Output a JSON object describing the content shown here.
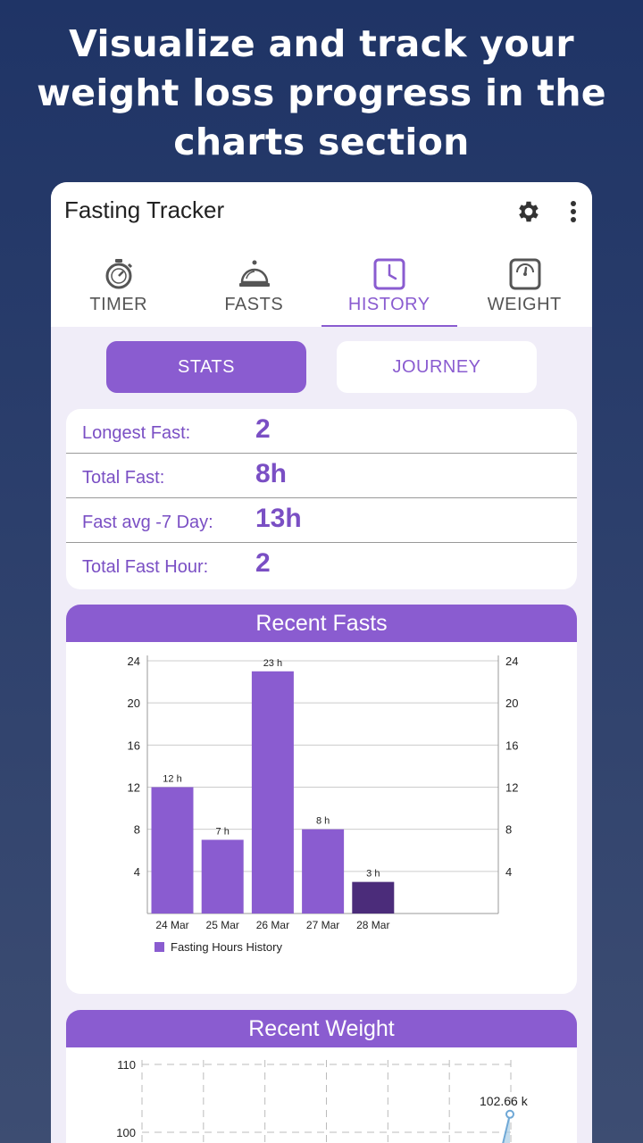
{
  "headline": {
    "line1": "Visualize and track your",
    "line2": "weight loss progress in the",
    "line3": "charts section"
  },
  "app": {
    "title": "Fasting Tracker",
    "icons": [
      "gear-icon",
      "more-vert-icon"
    ]
  },
  "tabs": [
    {
      "label": "TIMER",
      "icon": "stopwatch-icon",
      "active": false
    },
    {
      "label": "FASTS",
      "icon": "cloche-icon",
      "active": false
    },
    {
      "label": "HISTORY",
      "icon": "clock-icon",
      "active": true
    },
    {
      "label": "WEIGHT",
      "icon": "scale-icon",
      "active": false
    }
  ],
  "toggle": {
    "stats": "STATS",
    "journey": "JOURNEY",
    "selected": "STATS"
  },
  "stats": [
    {
      "label": "Longest Fast:",
      "value": "2"
    },
    {
      "label": "Total Fast:",
      "value": "8h"
    },
    {
      "label": "Fast avg -7 Day:",
      "value": "13h"
    },
    {
      "label": "Total Fast Hour:",
      "value": "2"
    }
  ],
  "recent_fasts": {
    "header": "Recent Fasts"
  },
  "recent_weight": {
    "header": "Recent Weight"
  },
  "colors": {
    "accent": "#8a5cd0",
    "bar": "#8a5cd0",
    "bar_last": "#4b2c7a",
    "weight_line": "#a9cde6"
  },
  "chart_data": [
    {
      "type": "bar",
      "title": "Recent Fasts",
      "categories": [
        "24 Mar",
        "25 Mar",
        "26 Mar",
        "27 Mar",
        "28 Mar"
      ],
      "series": [
        {
          "name": "Fasting Hours History",
          "values": [
            12,
            7,
            23,
            8,
            3
          ]
        }
      ],
      "data_labels": [
        "12 h",
        "7 h",
        "23 h",
        "8 h",
        "3 h"
      ],
      "yticks": [
        4,
        8,
        12,
        16,
        20,
        24
      ],
      "ylim": [
        0,
        24
      ],
      "dual_y_axis": true,
      "grid": true,
      "legend": "bottom-left"
    },
    {
      "type": "line",
      "title": "Recent Weight",
      "series": [
        {
          "values": [
            102.66
          ]
        }
      ],
      "data_labels": [
        "102.66 k"
      ],
      "yticks": [
        100,
        110
      ],
      "grid": true,
      "grid_style": "dashed"
    }
  ]
}
